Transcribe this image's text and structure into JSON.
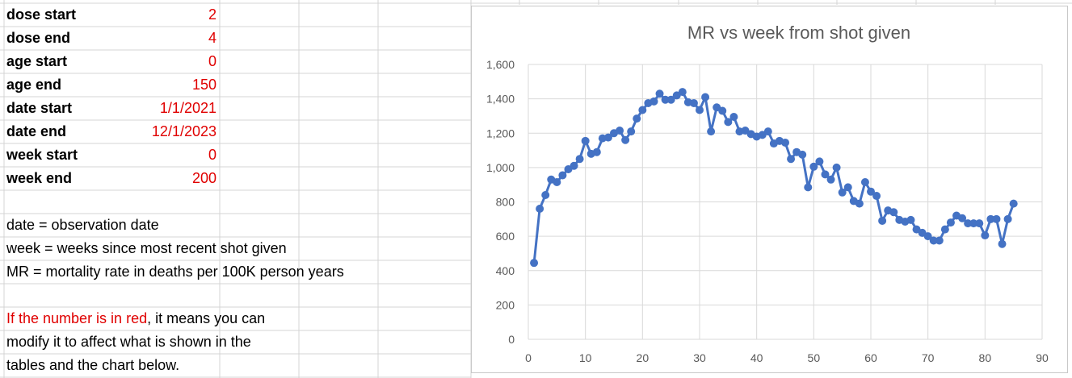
{
  "params": [
    {
      "label": "dose start",
      "value": "2"
    },
    {
      "label": "dose end",
      "value": "4"
    },
    {
      "label": "age start",
      "value": "0"
    },
    {
      "label": "age end",
      "value": "150"
    },
    {
      "label": "date start",
      "value": "1/1/2021"
    },
    {
      "label": "date end",
      "value": "12/1/2023"
    },
    {
      "label": "week start",
      "value": "0"
    },
    {
      "label": "week end",
      "value": "200"
    }
  ],
  "notes": {
    "line1": "date = observation date",
    "line2": "week = weeks since most recent shot given",
    "line3": "MR = mortality rate in deaths per 100K person years",
    "red_text": "If the number is in red",
    "red_rest": ", it means you can",
    "line5": "modify it to affect what is shown in the",
    "line6": "tables and the chart below."
  },
  "colors": {
    "series": "#4472c4",
    "editable": "#e00000",
    "gridline": "#d9d9d9"
  },
  "chart_data": {
    "type": "line",
    "title": "MR vs week from shot given",
    "xlabel": "",
    "ylabel": "",
    "xlim": [
      0,
      90
    ],
    "ylim": [
      0,
      1600
    ],
    "xticks": [
      0,
      10,
      20,
      30,
      40,
      50,
      60,
      70,
      80,
      90
    ],
    "yticks": [
      0,
      200,
      400,
      600,
      800,
      1000,
      1200,
      1400,
      1600
    ],
    "ytick_labels": [
      "0",
      "200",
      "400",
      "600",
      "800",
      "1,000",
      "1,200",
      "1,400",
      "1,600"
    ],
    "grid": true,
    "legend": "none",
    "series": [
      {
        "x": [
          1,
          2,
          3,
          4,
          5,
          6,
          7,
          8,
          9,
          10,
          11,
          12,
          13,
          14,
          15,
          16,
          17,
          18,
          19,
          20,
          21,
          22,
          23,
          24,
          25,
          26,
          27,
          28,
          29,
          30,
          31,
          32,
          33,
          34,
          35,
          36,
          37,
          38,
          39,
          40,
          41,
          42,
          43,
          44,
          45,
          46,
          47,
          48,
          49,
          50,
          51,
          52,
          53,
          54,
          55,
          56,
          57,
          58,
          59,
          60,
          61,
          62,
          63,
          64,
          65,
          66,
          67,
          68,
          69,
          70,
          71,
          72,
          73,
          74,
          75,
          76,
          77,
          78,
          79,
          80,
          81,
          82,
          83,
          84,
          85
        ],
        "values": [
          445,
          760,
          840,
          930,
          915,
          955,
          990,
          1010,
          1050,
          1155,
          1080,
          1090,
          1170,
          1175,
          1200,
          1215,
          1160,
          1210,
          1285,
          1335,
          1375,
          1385,
          1430,
          1395,
          1395,
          1420,
          1440,
          1380,
          1375,
          1335,
          1410,
          1210,
          1350,
          1330,
          1265,
          1295,
          1210,
          1215,
          1195,
          1180,
          1190,
          1210,
          1140,
          1155,
          1145,
          1050,
          1090,
          1075,
          885,
          1005,
          1035,
          960,
          930,
          1000,
          855,
          885,
          805,
          790,
          915,
          860,
          835,
          690,
          750,
          740,
          695,
          685,
          695,
          640,
          620,
          600,
          575,
          575,
          640,
          680,
          720,
          705,
          675,
          675,
          675,
          605,
          700,
          700,
          555,
          700,
          790
        ]
      }
    ]
  }
}
